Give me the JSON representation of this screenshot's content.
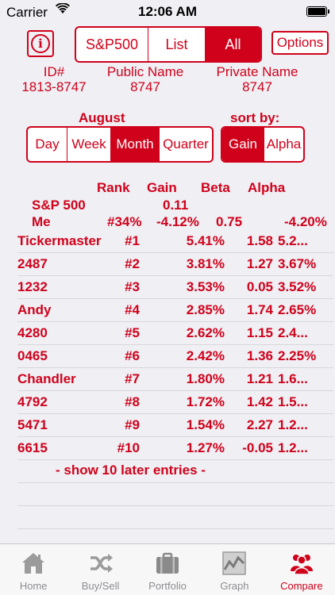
{
  "status_bar": {
    "carrier": "Carrier",
    "time": "12:06 AM",
    "wifi_icon": "wifi-icon",
    "battery_icon": "battery-full-icon"
  },
  "top": {
    "info_icon": "info-icon",
    "segments": [
      {
        "label": "S&P500",
        "selected": false
      },
      {
        "label": "List",
        "selected": false
      },
      {
        "label": "All",
        "selected": true
      }
    ],
    "options_label": "Options"
  },
  "identity": {
    "id_label": "ID#",
    "id_value": "1813-8747",
    "public_label": "Public Name",
    "public_value": "8747",
    "private_label": "Private Name",
    "private_value": "8747"
  },
  "period": {
    "heading": "August",
    "segments": [
      {
        "label": "Day",
        "selected": false
      },
      {
        "label": "Week",
        "selected": false
      },
      {
        "label": "Month",
        "selected": true
      },
      {
        "label": "Quarter",
        "selected": false
      }
    ]
  },
  "sort": {
    "heading": "sort by:",
    "segments": [
      {
        "label": "Gain",
        "selected": true
      },
      {
        "label": "Alpha",
        "selected": false
      }
    ]
  },
  "table": {
    "headers": {
      "rank": "Rank",
      "gain": "Gain",
      "beta": "Beta",
      "alpha": "Alpha"
    },
    "sp500": {
      "name": "S&P 500",
      "gain": "0.11"
    },
    "me": {
      "name": "Me",
      "rank": "#34%",
      "gain": "-4.12%",
      "beta": "0.75",
      "alpha": "-4.20%"
    },
    "rows": [
      {
        "name": "Tickermaster",
        "rank": "#1",
        "gain": "5.41%",
        "beta": "1.58",
        "alpha": "5.2..."
      },
      {
        "name": "2487",
        "rank": "#2",
        "gain": "3.81%",
        "beta": "1.27",
        "alpha": "3.67%"
      },
      {
        "name": "1232",
        "rank": "#3",
        "gain": "3.53%",
        "beta": "0.05",
        "alpha": "3.52%"
      },
      {
        "name": "Andy",
        "rank": "#4",
        "gain": "2.85%",
        "beta": "1.74",
        "alpha": "2.65%"
      },
      {
        "name": "4280",
        "rank": "#5",
        "gain": "2.62%",
        "beta": "1.15",
        "alpha": "2.4..."
      },
      {
        "name": "0465",
        "rank": "#6",
        "gain": "2.42%",
        "beta": "1.36",
        "alpha": "2.25%"
      },
      {
        "name": "Chandler",
        "rank": "#7",
        "gain": "1.80%",
        "beta": "1.21",
        "alpha": "1.6..."
      },
      {
        "name": "4792",
        "rank": "#8",
        "gain": "1.72%",
        "beta": "1.42",
        "alpha": "1.5..."
      },
      {
        "name": "5471",
        "rank": "#9",
        "gain": "1.54%",
        "beta": "2.27",
        "alpha": "1.2..."
      },
      {
        "name": "6615",
        "rank": "#10",
        "gain": "1.27%",
        "beta": "-0.05",
        "alpha": "1.2..."
      }
    ],
    "show_more": "- show 10 later entries -"
  },
  "tabbar": {
    "tabs": [
      {
        "label": "Home",
        "icon": "home-icon",
        "selected": false
      },
      {
        "label": "Buy/Sell",
        "icon": "shuffle-icon",
        "selected": false
      },
      {
        "label": "Portfolio",
        "icon": "briefcase-icon",
        "selected": false
      },
      {
        "label": "Graph",
        "icon": "graph-icon",
        "selected": false
      },
      {
        "label": "Compare",
        "icon": "people-icon",
        "selected": true
      }
    ]
  },
  "colors": {
    "accent": "#d0021b",
    "background": "#efeff4",
    "tab_inactive": "#8e8e93"
  }
}
